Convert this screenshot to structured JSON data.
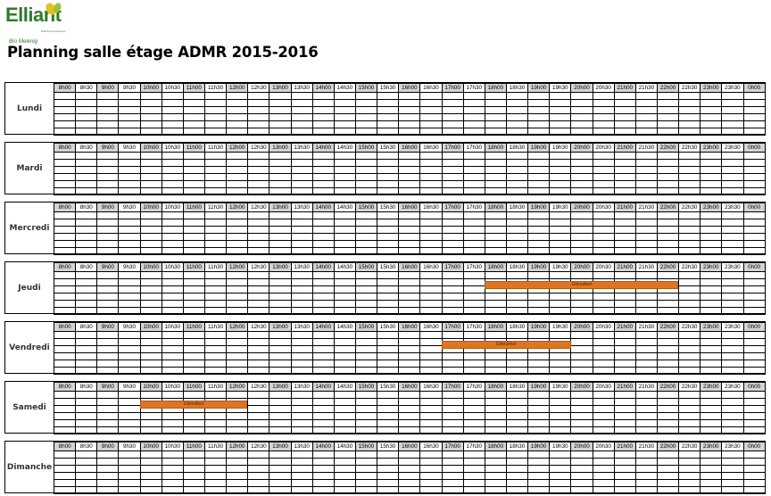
{
  "logo": {
    "name": "Elliant",
    "tagline": "Bro Melenig",
    "tiny": "Dalc'het ha Kreizenn"
  },
  "title": "Planning salle étage ADMR 2015-2016",
  "time_slots": [
    "8h00",
    "8h30",
    "9h00",
    "9h30",
    "10h00",
    "10h30",
    "11h00",
    "11h30",
    "12h00",
    "12h30",
    "13h00",
    "13h30",
    "14h00",
    "14h30",
    "15h00",
    "15h30",
    "16h00",
    "16h30",
    "17h00",
    "17h30",
    "18h00",
    "18h30",
    "19h00",
    "19h30",
    "20h00",
    "20h30",
    "21h00",
    "21h30",
    "22h00",
    "22h30",
    "23h00",
    "23h30",
    "0h00"
  ],
  "colors": {
    "booking": "#e07422",
    "header_shade": "#d4d4d4",
    "logo_green": "#2f7a2a"
  },
  "days": [
    {
      "name": "Lundi",
      "bookings": []
    },
    {
      "name": "Mardi",
      "bookings": []
    },
    {
      "name": "Mercredi",
      "bookings": []
    },
    {
      "name": "Jeudi",
      "bookings": [
        {
          "label": "Giboulibot",
          "start": "18h00",
          "end": "22h30"
        }
      ]
    },
    {
      "name": "Vendredi",
      "bookings": [
        {
          "label": "Giboulibot",
          "start": "17h00",
          "end": "20h00"
        }
      ]
    },
    {
      "name": "Samedi",
      "bookings": [
        {
          "label": "Giboulibot",
          "start": "10h00",
          "end": "12h30"
        }
      ]
    },
    {
      "name": "Dimanche",
      "bookings": []
    }
  ]
}
